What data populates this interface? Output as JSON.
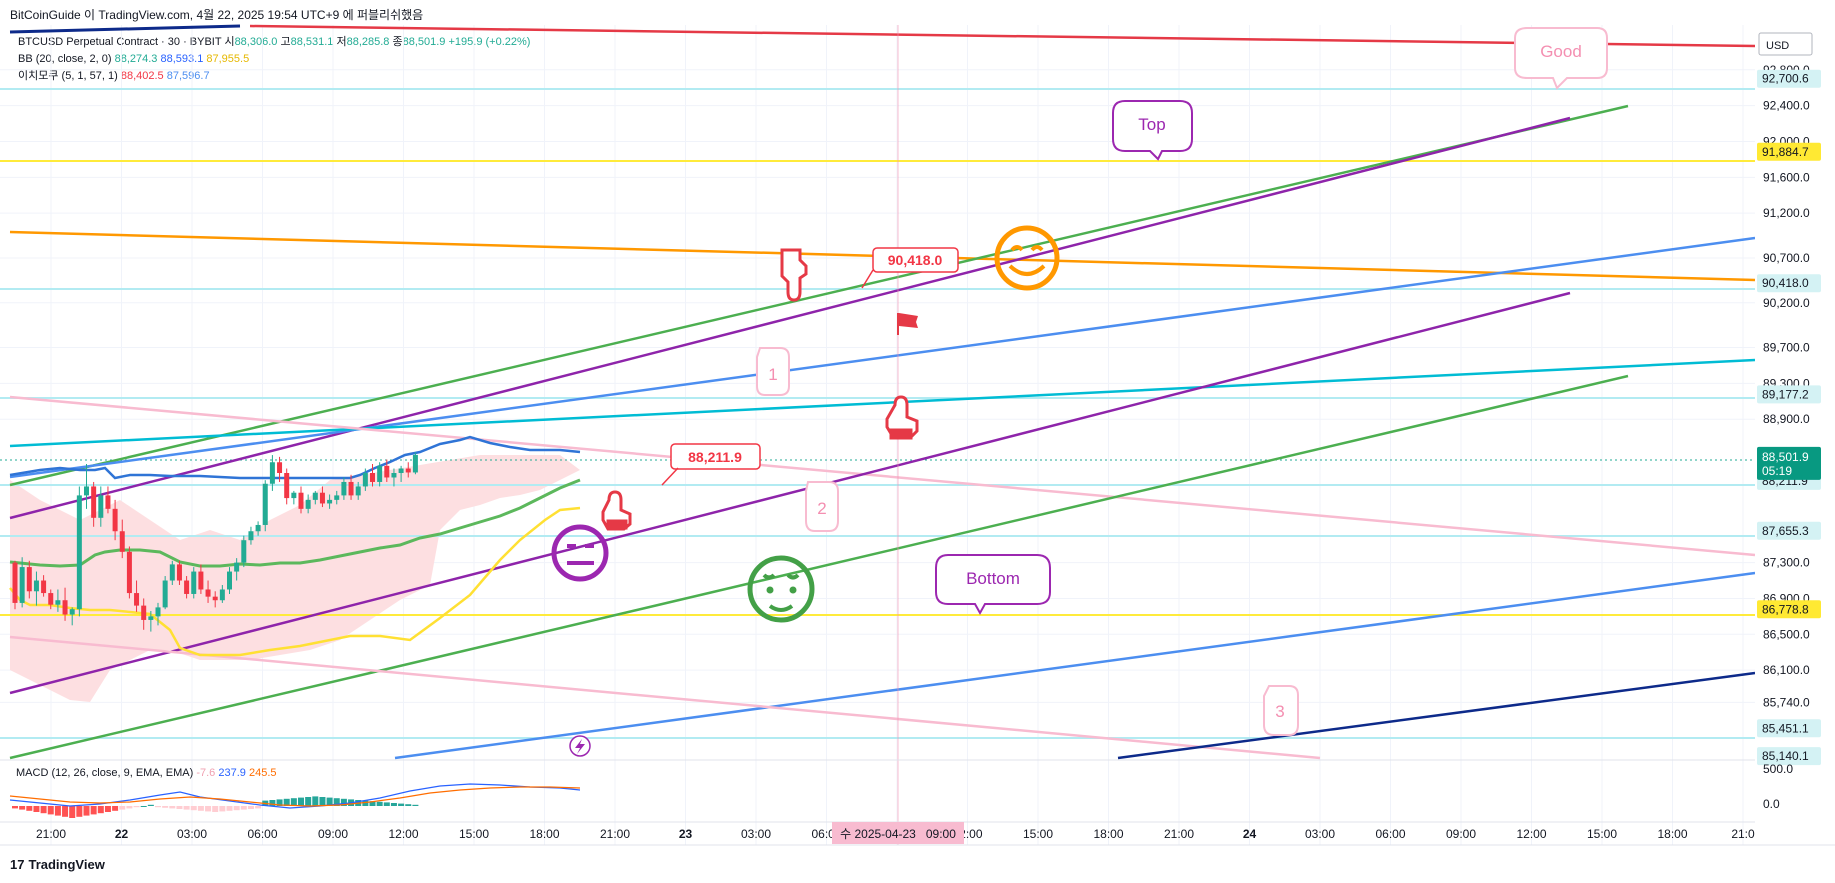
{
  "header": {
    "publisher": "BitCoinGuide 이 TradingView.com, 4월 22, 2025 19:54 UTC+9 에 퍼블리쉬했음"
  },
  "legend": {
    "symbol": "BTCUSD Perpetual Contract · 30 · BYBIT",
    "ohlc": {
      "o_label": "시",
      "o": "88,306.0",
      "h_label": "고",
      "h": "88,531.1",
      "l_label": "저",
      "l": "88,285.8",
      "c_label": "종",
      "c": "88,501.9",
      "chg": "+195.9 (+0.22%)"
    },
    "bb": {
      "label": "BB (20, close, 2, 0)",
      "v1": "88,274.3",
      "v2": "88,593.1",
      "v3": "87,955.5"
    },
    "ichimoku": {
      "label": "이치모쿠 (5, 1, 57, 1)",
      "v1": "88,402.5",
      "v2": "87,596.7"
    }
  },
  "macd": {
    "label": "MACD (12, 26, close, 9, EMA, EMA)",
    "v1": "-7.6",
    "v2": "237.9",
    "v3": "245.5"
  },
  "footer": {
    "brand": "TradingView",
    "logo": "17"
  },
  "colors": {
    "up": "#22ab94",
    "down": "#f23645",
    "bb_basis": "#5cb85c",
    "bb_band": "#2f74d6",
    "cloud": "#fddfe1",
    "yellow_line": "#ffe033",
    "grid": "#f0f3fa"
  },
  "chart_data": {
    "type": "candlestick",
    "currency": "USD",
    "ylim": [
      85000,
      93300
    ],
    "price_ticks": [
      "92,800.0",
      "92,400.0",
      "92,000.0",
      "91,600.0",
      "91,200.0",
      "90,700.0",
      "90,200.0",
      "89,700.0",
      "89,300.0",
      "88,900.0",
      "87,300.0",
      "86,900.0",
      "86,500.0",
      "86,100.0",
      "85,740.0"
    ],
    "price_labels": [
      {
        "text": "92,700.6",
        "value": 92700.6,
        "bg": "#d4f2f4",
        "fg": "#131722"
      },
      {
        "text": "91,884.7",
        "value": 91884.7,
        "bg": "#ffe933",
        "fg": "#131722"
      },
      {
        "text": "90,418.0",
        "value": 90418.0,
        "bg": "#d4f2f4",
        "fg": "#131722"
      },
      {
        "text": "89,177.2",
        "value": 89177.2,
        "bg": "#d4f2f4",
        "fg": "#131722"
      },
      {
        "text": "88,211.9",
        "value": 88211.9,
        "bg": "#d4f2f4",
        "fg": "#131722"
      },
      {
        "text": "87,655.3",
        "value": 87655.3,
        "bg": "#d4f2f4",
        "fg": "#131722"
      },
      {
        "text": "86,778.8",
        "value": 86778.8,
        "bg": "#ffe933",
        "fg": "#131722"
      },
      {
        "text": "85,451.1",
        "value": 85451.1,
        "bg": "#d4f2f4",
        "fg": "#131722"
      },
      {
        "text": "85,140.1",
        "value": 85140.1,
        "bg": "#d4f2f4",
        "fg": "#131722"
      }
    ],
    "last_price": {
      "text": "88,501.9",
      "countdown": "05:19",
      "value": 88501.9
    },
    "time_ticks": [
      "21:00",
      "22",
      "03:00",
      "06:00",
      "09:00",
      "12:00",
      "15:00",
      "18:00",
      "21:00",
      "23",
      "03:00",
      "06:00",
      "09:00",
      "12:00",
      "15:00",
      "18:00",
      "21:00",
      "24",
      "03:00",
      "06:00",
      "09:00",
      "12:00",
      "15:00",
      "18:00",
      "21:0"
    ],
    "crosshair_time": "수 2025-04-23   09:00",
    "macd_ticks": [
      "500.0",
      "0.0"
    ],
    "candles": [
      [
        87300,
        87320,
        86780,
        86850
      ],
      [
        86850,
        87360,
        86800,
        87250
      ],
      [
        87250,
        87320,
        86900,
        86980
      ],
      [
        86980,
        87200,
        86820,
        87100
      ],
      [
        87100,
        87160,
        86920,
        86960
      ],
      [
        86960,
        87000,
        86780,
        86830
      ],
      [
        86830,
        87000,
        86750,
        86880
      ],
      [
        86880,
        87020,
        86650,
        86720
      ],
      [
        86720,
        86800,
        86600,
        86780
      ],
      [
        86780,
        88150,
        86700,
        88050
      ],
      [
        88050,
        88400,
        87900,
        88150
      ],
      [
        88150,
        88200,
        87700,
        87800
      ],
      [
        87800,
        88150,
        87700,
        88050
      ],
      [
        88050,
        88150,
        87850,
        87900
      ],
      [
        87900,
        88000,
        87550,
        87650
      ],
      [
        87650,
        87780,
        87350,
        87420
      ],
      [
        87420,
        87480,
        86900,
        86960
      ],
      [
        86960,
        87100,
        86750,
        86820
      ],
      [
        86820,
        86900,
        86550,
        86660
      ],
      [
        86660,
        86760,
        86530,
        86700
      ],
      [
        86700,
        86850,
        86600,
        86800
      ],
      [
        86800,
        87150,
        86780,
        87100
      ],
      [
        87100,
        87320,
        87050,
        87280
      ],
      [
        87280,
        87320,
        87050,
        87100
      ],
      [
        87100,
        87150,
        86900,
        86950
      ],
      [
        86950,
        87250,
        86900,
        87200
      ],
      [
        87200,
        87280,
        86950,
        87000
      ],
      [
        87000,
        87100,
        86850,
        86920
      ],
      [
        86920,
        86980,
        86800,
        86880
      ],
      [
        86880,
        87050,
        86850,
        87000
      ],
      [
        87000,
        87250,
        86950,
        87200
      ],
      [
        87200,
        87350,
        87100,
        87300
      ],
      [
        87300,
        87600,
        87250,
        87550
      ],
      [
        87550,
        87700,
        87500,
        87650
      ],
      [
        87650,
        87760,
        87600,
        87720
      ],
      [
        87720,
        88220,
        87650,
        88180
      ],
      [
        88180,
        88500,
        88100,
        88420
      ],
      [
        88420,
        88480,
        88200,
        88300
      ],
      [
        88300,
        88350,
        87950,
        88020
      ],
      [
        88020,
        88100,
        87950,
        88080
      ],
      [
        88080,
        88150,
        87850,
        87900
      ],
      [
        87900,
        88060,
        87850,
        88000
      ],
      [
        88000,
        88100,
        87950,
        88080
      ],
      [
        88080,
        88150,
        87920,
        87960
      ],
      [
        87960,
        88060,
        87900,
        88000
      ],
      [
        88000,
        88100,
        87950,
        88050
      ],
      [
        88050,
        88250,
        88000,
        88200
      ],
      [
        88200,
        88280,
        88000,
        88050
      ],
      [
        88050,
        88200,
        88000,
        88150
      ],
      [
        88150,
        88350,
        88100,
        88300
      ],
      [
        88300,
        88400,
        88150,
        88200
      ],
      [
        88200,
        88420,
        88150,
        88380
      ],
      [
        88380,
        88450,
        88200,
        88250
      ],
      [
        88250,
        88350,
        88150,
        88300
      ],
      [
        88300,
        88380,
        88200,
        88350
      ],
      [
        88350,
        88420,
        88250,
        88306
      ],
      [
        88306,
        88531,
        88286,
        88502
      ]
    ],
    "annotations": [
      {
        "kind": "callout",
        "text": "Good",
        "color": "#f48fb1"
      },
      {
        "kind": "callout",
        "text": "Top",
        "color": "#9c27b0"
      },
      {
        "kind": "callout",
        "text": "Bottom",
        "color": "#9c27b0"
      },
      {
        "kind": "price-note",
        "text": "90,418.0"
      },
      {
        "kind": "price-note",
        "text": "88,211.9"
      },
      {
        "kind": "number",
        "text": "1"
      },
      {
        "kind": "number",
        "text": "2"
      },
      {
        "kind": "number",
        "text": "3"
      }
    ]
  }
}
